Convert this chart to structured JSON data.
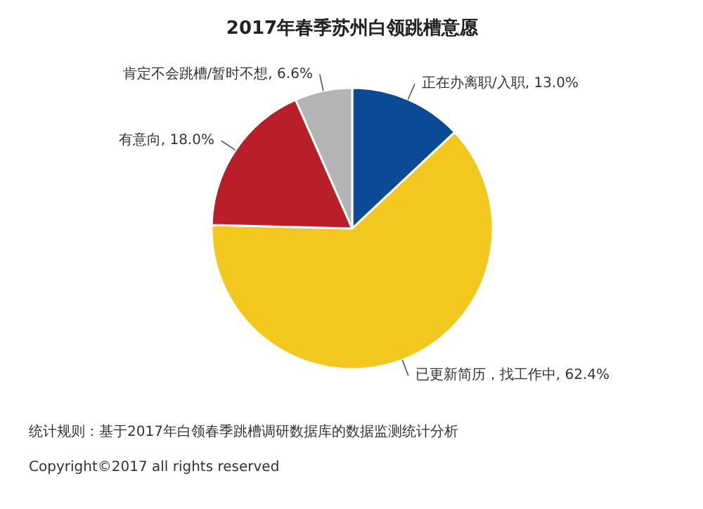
{
  "chart_data": {
    "type": "pie",
    "title": "2017年春季苏州白领跳槽意愿",
    "categories": [
      "正在办离职/入职",
      "已更新简历，找工作中",
      "有意向",
      "肯定不会跳槽/暂时不想"
    ],
    "values": [
      13.0,
      62.4,
      18.0,
      6.6
    ],
    "value_labels": [
      "13.0%",
      "62.4%",
      "18.0%",
      "6.6%"
    ],
    "colors": [
      "#0b4a94",
      "#f2c81e",
      "#b81f28",
      "#b4b4b6"
    ],
    "annotations": [
      "统计规则：基于2017年白领春季跳槽调研数据库的数据监测统计分析",
      "Copyright©2017 all rights reserved"
    ]
  }
}
